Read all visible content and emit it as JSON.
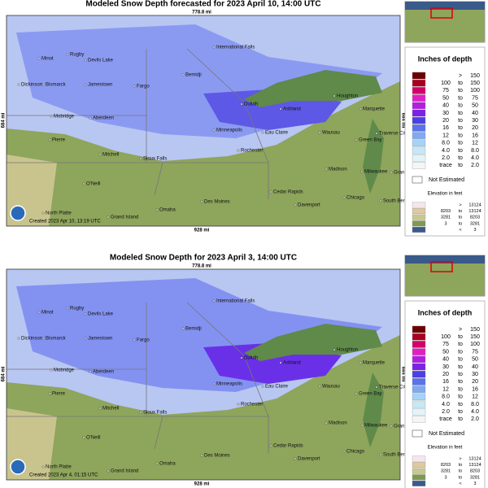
{
  "panels": [
    {
      "title": "Modeled Snow Depth forecasted for 2023 April 10, 14:00 UTC",
      "created": "Created 2023 Apr 10, 13:19 UTC"
    },
    {
      "title": "Modeled Snow Depth for 2023 April 3, 14:00 UTC",
      "created": "Created 2023 Apr 4, 01:15 UTC"
    }
  ],
  "scale_top": "778.8 mi",
  "scale_bottom": "928 mi",
  "scale_side": "684 mi",
  "cities": [
    "Minot",
    "Rugby",
    "Devils Lake",
    "Dickinson",
    "Bismarck",
    "Jamestown",
    "Fargo",
    "Bemidji",
    "International Falls",
    "Duluth",
    "Ashland",
    "Houghton",
    "Marquette",
    "Mobridge",
    "Aberdeen",
    "Pierre",
    "Minneapolis",
    "Eau Claire",
    "Wausau",
    "Green Bay",
    "Traverse City",
    "Rochester",
    "Mitchell",
    "Sioux Falls",
    "Madison",
    "Milwaukee",
    "Grand Rapids",
    "O'Neill",
    "Des Moines",
    "Cedar Rapids",
    "Davenport",
    "Chicago",
    "South Bend",
    "North Platte",
    "Grand Island",
    "Omaha"
  ],
  "legend": {
    "title": "Inches of depth",
    "rows": [
      {
        "text": [
          ">",
          "150"
        ],
        "color": "#6b0000"
      },
      {
        "text": [
          "100",
          "to",
          "150"
        ],
        "color": "#a8001e"
      },
      {
        "text": [
          "75",
          "to",
          "100"
        ],
        "color": "#d4006a"
      },
      {
        "text": [
          "50",
          "to",
          "75"
        ],
        "color": "#e020c0"
      },
      {
        "text": [
          "40",
          "to",
          "50"
        ],
        "color": "#b01ee0"
      },
      {
        "text": [
          "30",
          "to",
          "40"
        ],
        "color": "#7a22e6"
      },
      {
        "text": [
          "20",
          "to",
          "30"
        ],
        "color": "#4c40e2"
      },
      {
        "text": [
          "16",
          "to",
          "20"
        ],
        "color": "#5a72ea"
      },
      {
        "text": [
          "12",
          "to",
          "16"
        ],
        "color": "#7eaaf2"
      },
      {
        "text": [
          "8.0",
          "to",
          "12"
        ],
        "color": "#a6d2f6"
      },
      {
        "text": [
          "4.0",
          "to",
          "8.0"
        ],
        "color": "#c6e8f6"
      },
      {
        "text": [
          "2.0",
          "to",
          "4.0"
        ],
        "color": "#e2f4fa"
      },
      {
        "text": [
          "trace",
          "to",
          "2.0"
        ],
        "color": "#f4f6f6"
      }
    ],
    "not_estimated": "Not Estimated",
    "elevation_title": "Elevation in feet",
    "elevation_rows": [
      {
        "text": [
          ">",
          "13124"
        ],
        "color": "#f4e6ee"
      },
      {
        "text": [
          "8203",
          "to",
          "13124"
        ],
        "color": "#e0c8a0"
      },
      {
        "text": [
          "3281",
          "to",
          "8203"
        ],
        "color": "#c8c890"
      },
      {
        "text": [
          "3",
          "to",
          "3281"
        ],
        "color": "#7e9a50"
      },
      {
        "text": [
          "<",
          "3"
        ],
        "color": "#3a5a8a"
      }
    ]
  }
}
